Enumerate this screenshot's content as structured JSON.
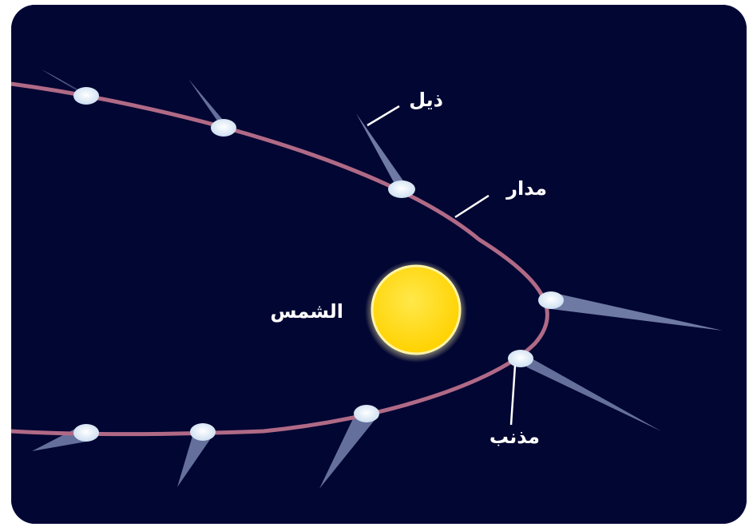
{
  "labels": {
    "tail": "ذيل",
    "orbit": "مدار",
    "sun": "الشمس",
    "comet": "مذنب"
  },
  "colors": {
    "background": "#020633",
    "orbit": "#b06a86",
    "sun": "#ffd700",
    "sun_glow": "#fff6b0",
    "comet_head": "#e8f4ff",
    "tail": "#c8d4f4",
    "label": "#ffffff"
  }
}
